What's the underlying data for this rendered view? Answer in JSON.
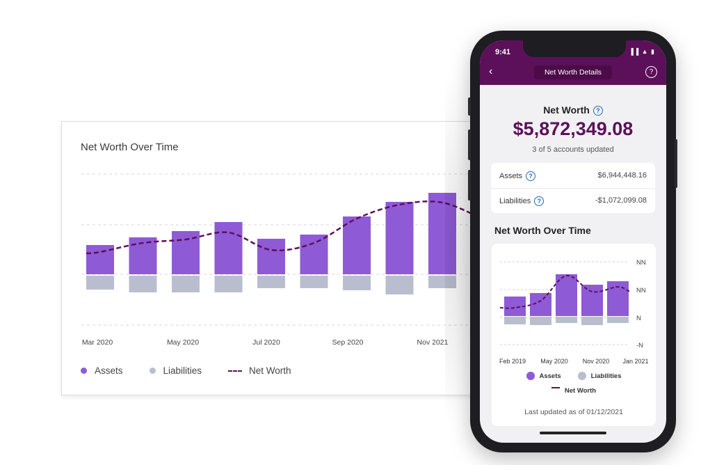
{
  "desktop": {
    "title": "Net Worth Over Time",
    "legend": {
      "assets": "Assets",
      "liabilities": "Liabilities",
      "net_worth": "Net Worth"
    }
  },
  "chart_data": [
    {
      "type": "bar",
      "title": "Net Worth Over Time",
      "x_tick_labels": [
        "Mar 2020",
        "May 2020",
        "Jul 2020",
        "Sep 2020",
        "Nov 2021"
      ],
      "series": [
        {
          "name": "Assets",
          "values": [
            42,
            53,
            62,
            75,
            51,
            57,
            83,
            104,
            117,
            82
          ]
        },
        {
          "name": "Liabilities",
          "values": [
            -20,
            -24,
            -24,
            -24,
            -18,
            -18,
            -21,
            -27,
            -18,
            -17
          ]
        },
        {
          "name": "Net Worth",
          "values": [
            32,
            45,
            50,
            60,
            35,
            45,
            80,
            100,
            103,
            78
          ]
        }
      ],
      "colors": {
        "assets": "#8e5ad6",
        "liabilities": "#b9becf",
        "net_worth": "#5c1059"
      },
      "grid": true
    },
    {
      "type": "bar",
      "title": "Net Worth Over Time",
      "x_tick_labels": [
        "Feb 2019",
        "May 2020",
        "Nov 2020",
        "Jan 2021"
      ],
      "y_tick_labels": [
        "NN",
        "NN",
        "N",
        "-N"
      ],
      "series": [
        {
          "name": "Assets",
          "values": [
            28,
            33,
            60,
            45,
            50
          ]
        },
        {
          "name": "Liabilities",
          "values": [
            -11,
            -12,
            -9,
            -12,
            -9
          ]
        },
        {
          "name": "Net Worth",
          "values": [
            12,
            22,
            58,
            35,
            42
          ]
        }
      ],
      "grid": true
    }
  ],
  "phone": {
    "time": "9:41",
    "status_icons": "▐▐ ▲ ▮",
    "back_icon": "‹",
    "title": "Net Worth Details",
    "help": "?",
    "net_worth_label": "Net Worth",
    "net_worth_value": "$5,872,349.08",
    "accounts_updated": "3 of 5 accounts updated",
    "assets_label": "Assets",
    "assets_value": "$6,944,448.16",
    "liabilities_label": "Liabilities",
    "liabilities_value": "-$1,072,099.08",
    "chart_title": "Net Worth Over Time",
    "legend": {
      "assets": "Assets",
      "liabilities": "Liabilities",
      "net_worth": "Net Worth"
    },
    "last_updated": "Last updated as of 01/12/2021"
  }
}
